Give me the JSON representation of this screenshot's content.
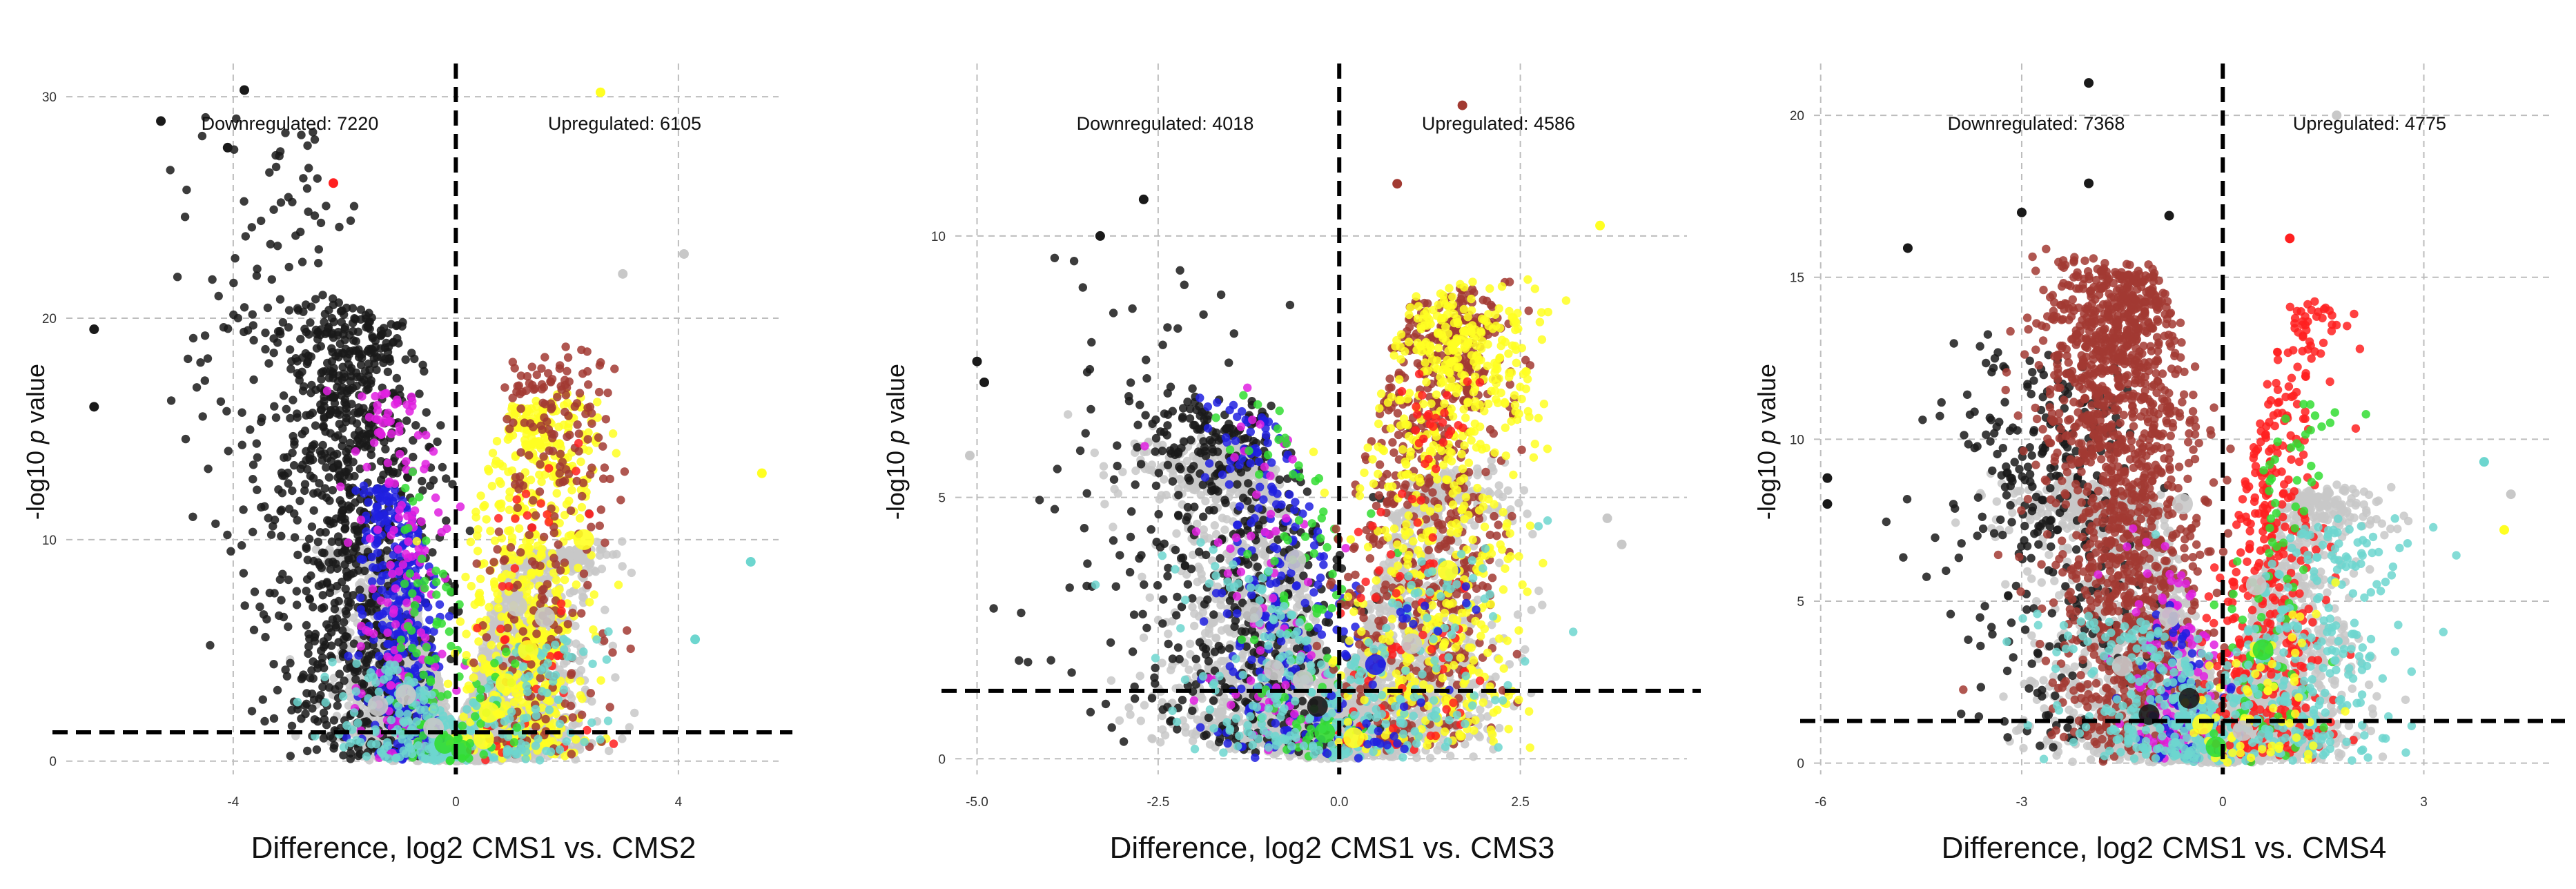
{
  "chart_data": [
    {
      "type": "scatter",
      "title": "",
      "xlabel": "Difference, log2 CMS1 vs. CMS2",
      "ylabel_prefix": "-log10 ",
      "ylabel_italic": "p",
      "ylabel_suffix": " value",
      "xlim": [
        -7.0,
        5.8
      ],
      "ylim": [
        -0.6,
        31.5
      ],
      "x_ticks": [
        -4,
        0,
        4
      ],
      "x_tick_labels": [
        "-4",
        "0",
        "4"
      ],
      "y_ticks": [
        0,
        10,
        20,
        30
      ],
      "y_tick_labels": [
        "0",
        "10",
        "20",
        "30"
      ],
      "grid": true,
      "threshold_x": 0,
      "threshold_y": 1.3,
      "annotations": [
        {
          "text": "Downregulated: 7220",
          "x": -3.4,
          "y": 28.7
        },
        {
          "text": "Upregulated: 6105",
          "x": 2.4,
          "y": 28.7
        }
      ],
      "series_colors": {
        "black": "#1a1a1a",
        "grey": "#c8c8c8",
        "blue": "#2020e0",
        "magenta": "#e020e0",
        "green": "#33dd33",
        "yellow": "#ffff22",
        "brown": "#a23a32",
        "red": "#ff2020",
        "cyan": "#6dd6cf"
      },
      "seed": 11,
      "clouds": [
        {
          "color": "grey",
          "n": 1500,
          "mx": -0.9,
          "sx": 0.6,
          "ymax": 9,
          "shape": 1.5,
          "cone": 0.9
        },
        {
          "color": "grey",
          "n": 1500,
          "mx": 1.0,
          "sx": 0.7,
          "ymax": 9,
          "shape": 1.5,
          "cone": 0.9
        },
        {
          "color": "black",
          "n": 900,
          "mx": -1.8,
          "sx": 0.7,
          "ymax": 20,
          "shape": 1.0,
          "cone": 0.3
        },
        {
          "color": "black",
          "n": 150,
          "mx": -3.3,
          "sx": 0.9,
          "ymax": 28,
          "shape": 0.8,
          "cone": 0.0
        },
        {
          "color": "blue",
          "n": 350,
          "mx": -1.0,
          "sx": 0.35,
          "ymax": 12,
          "shape": 1.2,
          "cone": 0.5
        },
        {
          "color": "magenta",
          "n": 160,
          "mx": -1.0,
          "sx": 0.4,
          "ymax": 17,
          "shape": 1.0,
          "cone": 0.3
        },
        {
          "color": "green",
          "n": 70,
          "mx": -0.5,
          "sx": 0.3,
          "ymax": 14,
          "shape": 1.3,
          "cone": 0.5
        },
        {
          "color": "cyan",
          "n": 160,
          "mx": -0.6,
          "sx": 0.7,
          "ymax": 4,
          "shape": 1.5,
          "cone": 0.6
        },
        {
          "color": "yellow",
          "n": 650,
          "mx": 1.4,
          "sx": 0.55,
          "ymax": 16,
          "shape": 1.1,
          "cone": 0.5
        },
        {
          "color": "brown",
          "n": 260,
          "mx": 1.6,
          "sx": 0.55,
          "ymax": 18,
          "shape": 1.2,
          "cone": 0.4
        },
        {
          "color": "red",
          "n": 40,
          "mx": 1.5,
          "sx": 0.6,
          "ymax": 14,
          "shape": 1.2,
          "cone": 0.4
        },
        {
          "color": "cyan",
          "n": 120,
          "mx": 1.2,
          "sx": 0.8,
          "ymax": 5,
          "shape": 1.5,
          "cone": 0.6
        },
        {
          "color": "green",
          "n": 25,
          "mx": 0.6,
          "sx": 0.5,
          "ymax": 5,
          "shape": 1.5,
          "cone": 0.5
        }
      ],
      "highlights": [
        {
          "x": -5.3,
          "y": 28.9,
          "color": "black"
        },
        {
          "x": -4.1,
          "y": 27.7,
          "color": "black"
        },
        {
          "x": -3.8,
          "y": 30.3,
          "color": "black"
        },
        {
          "x": -2.2,
          "y": 26.1,
          "color": "red"
        },
        {
          "x": -6.5,
          "y": 19.5,
          "color": "black"
        },
        {
          "x": -6.5,
          "y": 16.0,
          "color": "black"
        },
        {
          "x": 2.6,
          "y": 30.2,
          "color": "yellow"
        },
        {
          "x": 4.1,
          "y": 22.9,
          "color": "grey"
        },
        {
          "x": 5.5,
          "y": 13.0,
          "color": "yellow"
        },
        {
          "x": 5.3,
          "y": 9.0,
          "color": "cyan"
        },
        {
          "x": 4.3,
          "y": 5.5,
          "color": "cyan"
        },
        {
          "x": 3.0,
          "y": 22.0,
          "color": "grey"
        }
      ],
      "big_dots": [
        {
          "x": 0.1,
          "y": 0.5,
          "color": "green"
        },
        {
          "x": -0.4,
          "y": 1.5,
          "color": "grey"
        },
        {
          "x": 0.6,
          "y": 2.2,
          "color": "yellow"
        },
        {
          "x": -0.9,
          "y": 3.0,
          "color": "grey"
        },
        {
          "x": 0.9,
          "y": 3.5,
          "color": "yellow"
        },
        {
          "x": 1.3,
          "y": 5.0,
          "color": "yellow"
        },
        {
          "x": 0.5,
          "y": 1.0,
          "color": "yellow"
        },
        {
          "x": -0.2,
          "y": 0.8,
          "color": "green"
        },
        {
          "x": 1.6,
          "y": 6.5,
          "color": "grey"
        },
        {
          "x": 2.3,
          "y": 10.0,
          "color": "yellow"
        },
        {
          "x": 1.1,
          "y": 7.0,
          "color": "grey"
        },
        {
          "x": -1.4,
          "y": 2.5,
          "color": "grey"
        }
      ]
    },
    {
      "type": "scatter",
      "title": "",
      "xlabel": "Difference, log2 CMS1 vs. CMS3",
      "ylabel_prefix": "-log10 ",
      "ylabel_italic": "p",
      "ylabel_suffix": " value",
      "xlim": [
        -5.3,
        4.8
      ],
      "ylim": [
        -0.3,
        13.3
      ],
      "x_ticks": [
        -5.0,
        -2.5,
        0.0,
        2.5
      ],
      "x_tick_labels": [
        "-5.0",
        "-2.5",
        "0.0",
        "2.5"
      ],
      "y_ticks": [
        0,
        5,
        10
      ],
      "y_tick_labels": [
        "0",
        "5",
        "10"
      ],
      "grid": true,
      "threshold_x": 0,
      "threshold_y": 1.3,
      "annotations": [
        {
          "text": "Downregulated: 4018",
          "x": -2.1,
          "y": 11.9
        },
        {
          "text": "Upregulated: 4586",
          "x": 1.65,
          "y": 11.9
        }
      ],
      "series_colors": {
        "black": "#1a1a1a",
        "grey": "#c8c8c8",
        "blue": "#2020e0",
        "magenta": "#e020e0",
        "green": "#33dd33",
        "yellow": "#ffff22",
        "brown": "#a23a32",
        "red": "#ff2020",
        "cyan": "#6dd6cf"
      },
      "seed": 23,
      "clouds": [
        {
          "color": "grey",
          "n": 1400,
          "mx": -1.1,
          "sx": 0.75,
          "ymax": 5.5,
          "shape": 1.4,
          "cone": 0.8
        },
        {
          "color": "grey",
          "n": 1200,
          "mx": 0.9,
          "sx": 0.65,
          "ymax": 5.0,
          "shape": 1.4,
          "cone": 0.8
        },
        {
          "color": "black",
          "n": 450,
          "mx": -1.3,
          "sx": 0.7,
          "ymax": 6.5,
          "shape": 1.1,
          "cone": 0.4
        },
        {
          "color": "black",
          "n": 90,
          "mx": -2.8,
          "sx": 0.9,
          "ymax": 9.0,
          "shape": 0.9,
          "cone": 0.0
        },
        {
          "color": "blue",
          "n": 220,
          "mx": -0.9,
          "sx": 0.45,
          "ymax": 6.5,
          "shape": 1.2,
          "cone": 0.5
        },
        {
          "color": "magenta",
          "n": 70,
          "mx": -1.0,
          "sx": 0.5,
          "ymax": 7.0,
          "shape": 1.2,
          "cone": 0.4
        },
        {
          "color": "green",
          "n": 90,
          "mx": -0.6,
          "sx": 0.45,
          "ymax": 7.5,
          "shape": 1.2,
          "cone": 0.4
        },
        {
          "color": "cyan",
          "n": 160,
          "mx": -0.8,
          "sx": 0.8,
          "ymax": 3.5,
          "shape": 1.4,
          "cone": 0.6
        },
        {
          "color": "brown",
          "n": 700,
          "mx": 1.3,
          "sx": 0.55,
          "ymax": 8.5,
          "shape": 1.0,
          "cone": 0.5
        },
        {
          "color": "yellow",
          "n": 650,
          "mx": 1.5,
          "sx": 0.6,
          "ymax": 8.5,
          "shape": 1.1,
          "cone": 0.5
        },
        {
          "color": "red",
          "n": 90,
          "mx": 1.0,
          "sx": 0.5,
          "ymax": 7.0,
          "shape": 1.2,
          "cone": 0.5
        },
        {
          "color": "cyan",
          "n": 130,
          "mx": 1.0,
          "sx": 0.8,
          "ymax": 3.5,
          "shape": 1.4,
          "cone": 0.6
        },
        {
          "color": "blue",
          "n": 30,
          "mx": 0.8,
          "sx": 0.5,
          "ymax": 3.0,
          "shape": 1.3,
          "cone": 0.5
        }
      ],
      "highlights": [
        {
          "x": -3.3,
          "y": 10.0,
          "color": "black"
        },
        {
          "x": -2.7,
          "y": 10.7,
          "color": "black"
        },
        {
          "x": -5.0,
          "y": 7.6,
          "color": "black"
        },
        {
          "x": -5.1,
          "y": 5.8,
          "color": "grey"
        },
        {
          "x": -4.9,
          "y": 7.2,
          "color": "black"
        },
        {
          "x": 1.7,
          "y": 12.5,
          "color": "brown"
        },
        {
          "x": 0.8,
          "y": 11.0,
          "color": "brown"
        },
        {
          "x": 3.6,
          "y": 10.2,
          "color": "yellow"
        },
        {
          "x": 3.9,
          "y": 4.1,
          "color": "grey"
        },
        {
          "x": 3.7,
          "y": 4.6,
          "color": "grey"
        }
      ],
      "big_dots": [
        {
          "x": -0.2,
          "y": 0.5,
          "color": "green"
        },
        {
          "x": 0.2,
          "y": 0.4,
          "color": "yellow"
        },
        {
          "x": -0.5,
          "y": 1.5,
          "color": "grey"
        },
        {
          "x": 0.5,
          "y": 1.8,
          "color": "blue"
        },
        {
          "x": -0.9,
          "y": 1.7,
          "color": "grey"
        },
        {
          "x": -0.3,
          "y": 1.0,
          "color": "black"
        },
        {
          "x": 1.0,
          "y": 2.2,
          "color": "grey"
        },
        {
          "x": -1.2,
          "y": 2.8,
          "color": "grey"
        },
        {
          "x": -0.6,
          "y": 3.8,
          "color": "grey"
        },
        {
          "x": 1.5,
          "y": 3.6,
          "color": "yellow"
        }
      ]
    },
    {
      "type": "scatter",
      "title": "",
      "xlabel": "Difference, log2 CMS1 vs. CMS4",
      "ylabel_prefix": "-log10 ",
      "ylabel_italic": "p",
      "ylabel_suffix": " value",
      "xlim": [
        -6.1,
        4.9
      ],
      "ylim": [
        -0.35,
        21.6
      ],
      "x_ticks": [
        -6,
        -3,
        0,
        3
      ],
      "x_tick_labels": [
        "-6",
        "-3",
        "0",
        "3"
      ],
      "y_ticks": [
        0,
        5,
        10,
        15,
        20
      ],
      "y_tick_labels": [
        "0",
        "5",
        "10",
        "15",
        "20"
      ],
      "grid": true,
      "threshold_x": 0,
      "threshold_y": 1.3,
      "annotations": [
        {
          "text": "Downregulated: 7368",
          "x": -2.8,
          "y": 19.5
        },
        {
          "text": "Upregulated: 4775",
          "x": 2.2,
          "y": 19.5
        }
      ],
      "series_colors": {
        "black": "#1a1a1a",
        "grey": "#c8c8c8",
        "blue": "#2020e0",
        "magenta": "#e020e0",
        "green": "#33dd33",
        "yellow": "#ffff22",
        "brown": "#a23a32",
        "red": "#ff2020",
        "cyan": "#6dd6cf"
      },
      "seed": 37,
      "clouds": [
        {
          "color": "grey",
          "n": 1400,
          "mx": -1.3,
          "sx": 0.8,
          "ymax": 8,
          "shape": 1.4,
          "cone": 0.8
        },
        {
          "color": "grey",
          "n": 1100,
          "mx": 0.9,
          "sx": 0.6,
          "ymax": 8,
          "shape": 1.4,
          "cone": 0.8
        },
        {
          "color": "black",
          "n": 320,
          "mx": -2.6,
          "sx": 0.8,
          "ymax": 12,
          "shape": 1.0,
          "cone": 0.3
        },
        {
          "color": "brown",
          "n": 1500,
          "mx": -1.5,
          "sx": 0.6,
          "ymax": 15,
          "shape": 0.9,
          "cone": 0.3
        },
        {
          "color": "magenta",
          "n": 120,
          "mx": -0.7,
          "sx": 0.35,
          "ymax": 7,
          "shape": 1.2,
          "cone": 0.5
        },
        {
          "color": "blue",
          "n": 80,
          "mx": -0.6,
          "sx": 0.35,
          "ymax": 5,
          "shape": 1.3,
          "cone": 0.5
        },
        {
          "color": "cyan",
          "n": 280,
          "mx": -0.8,
          "sx": 0.8,
          "ymax": 4,
          "shape": 1.4,
          "cone": 0.6
        },
        {
          "color": "red",
          "n": 420,
          "mx": 0.8,
          "sx": 0.4,
          "ymax": 14,
          "shape": 1.1,
          "cone": 0.6
        },
        {
          "color": "green",
          "n": 90,
          "mx": 0.8,
          "sx": 0.4,
          "ymax": 11,
          "shape": 1.2,
          "cone": 0.5
        },
        {
          "color": "cyan",
          "n": 260,
          "mx": 1.4,
          "sx": 0.8,
          "ymax": 7,
          "shape": 1.4,
          "cone": 0.6
        },
        {
          "color": "yellow",
          "n": 60,
          "mx": 0.6,
          "sx": 0.5,
          "ymax": 5,
          "shape": 1.3,
          "cone": 0.5
        }
      ],
      "highlights": [
        {
          "x": -2.0,
          "y": 21.0,
          "color": "black"
        },
        {
          "x": -2.0,
          "y": 17.9,
          "color": "black"
        },
        {
          "x": -3.0,
          "y": 17.0,
          "color": "black"
        },
        {
          "x": -0.8,
          "y": 16.9,
          "color": "black"
        },
        {
          "x": -4.7,
          "y": 15.9,
          "color": "black"
        },
        {
          "x": -5.9,
          "y": 8.8,
          "color": "black"
        },
        {
          "x": -5.9,
          "y": 8.0,
          "color": "black"
        },
        {
          "x": 1.7,
          "y": 20.0,
          "color": "grey"
        },
        {
          "x": 3.9,
          "y": 9.3,
          "color": "cyan"
        },
        {
          "x": 4.3,
          "y": 8.3,
          "color": "grey"
        },
        {
          "x": 4.2,
          "y": 7.2,
          "color": "yellow"
        },
        {
          "x": 1.0,
          "y": 16.2,
          "color": "red"
        }
      ],
      "big_dots": [
        {
          "x": -0.1,
          "y": 0.5,
          "color": "green"
        },
        {
          "x": -0.5,
          "y": 2.0,
          "color": "black"
        },
        {
          "x": -0.3,
          "y": 1.2,
          "color": "yellow"
        },
        {
          "x": 0.3,
          "y": 1.0,
          "color": "grey"
        },
        {
          "x": -1.1,
          "y": 1.5,
          "color": "black"
        },
        {
          "x": 0.6,
          "y": 3.5,
          "color": "green"
        },
        {
          "x": -0.8,
          "y": 4.5,
          "color": "grey"
        },
        {
          "x": 0.5,
          "y": 5.5,
          "color": "grey"
        },
        {
          "x": -1.5,
          "y": 3.0,
          "color": "grey"
        },
        {
          "x": -0.6,
          "y": 8.0,
          "color": "grey"
        }
      ]
    }
  ]
}
